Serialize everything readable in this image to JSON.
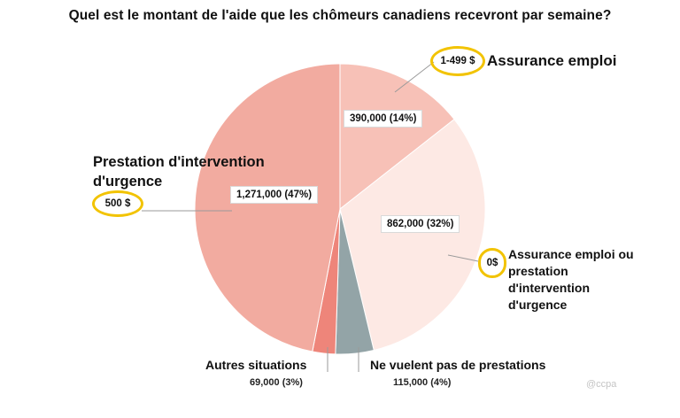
{
  "chart_data": {
    "type": "pie",
    "title": "Quel est le montant de l'aide que les chômeurs canadiens recevront par semaine?",
    "slices": [
      {
        "name": "Assurance emploi",
        "amount": "1-499 $",
        "value": 390000,
        "value_label": "390,000 (14%)",
        "color": "#f7c1b7"
      },
      {
        "name": "Assurance emploi ou prestation d'intervention d'urgence",
        "amount": "0$",
        "value": 862000,
        "value_label": "862,000 (32%)",
        "color": "#fde9e4"
      },
      {
        "name": "Ne vuelent pas de prestations",
        "value": 115000,
        "value_label": "115,000 (4%)",
        "color": "#93a4a7"
      },
      {
        "name": "Autres situations",
        "value": 69000,
        "value_label": "69,000 (3%)",
        "color": "#ee857a"
      },
      {
        "name": "Prestation d'intervention d'urgence",
        "amount": "500 $",
        "value": 1271000,
        "value_label": "1,271,000 (47%)",
        "color": "#f2aba0"
      }
    ]
  },
  "labels": {
    "assurance_emploi": "Assurance emploi",
    "prestation_line1": "Prestation d'intervention",
    "prestation_line2": "d'urgence",
    "ae_ou_line1": "Assurance emploi ou",
    "ae_ou_line2": "prestation",
    "ae_ou_line3": "d'intervention",
    "ae_ou_line4": "d'urgence"
  },
  "watermark": "@ccpa"
}
